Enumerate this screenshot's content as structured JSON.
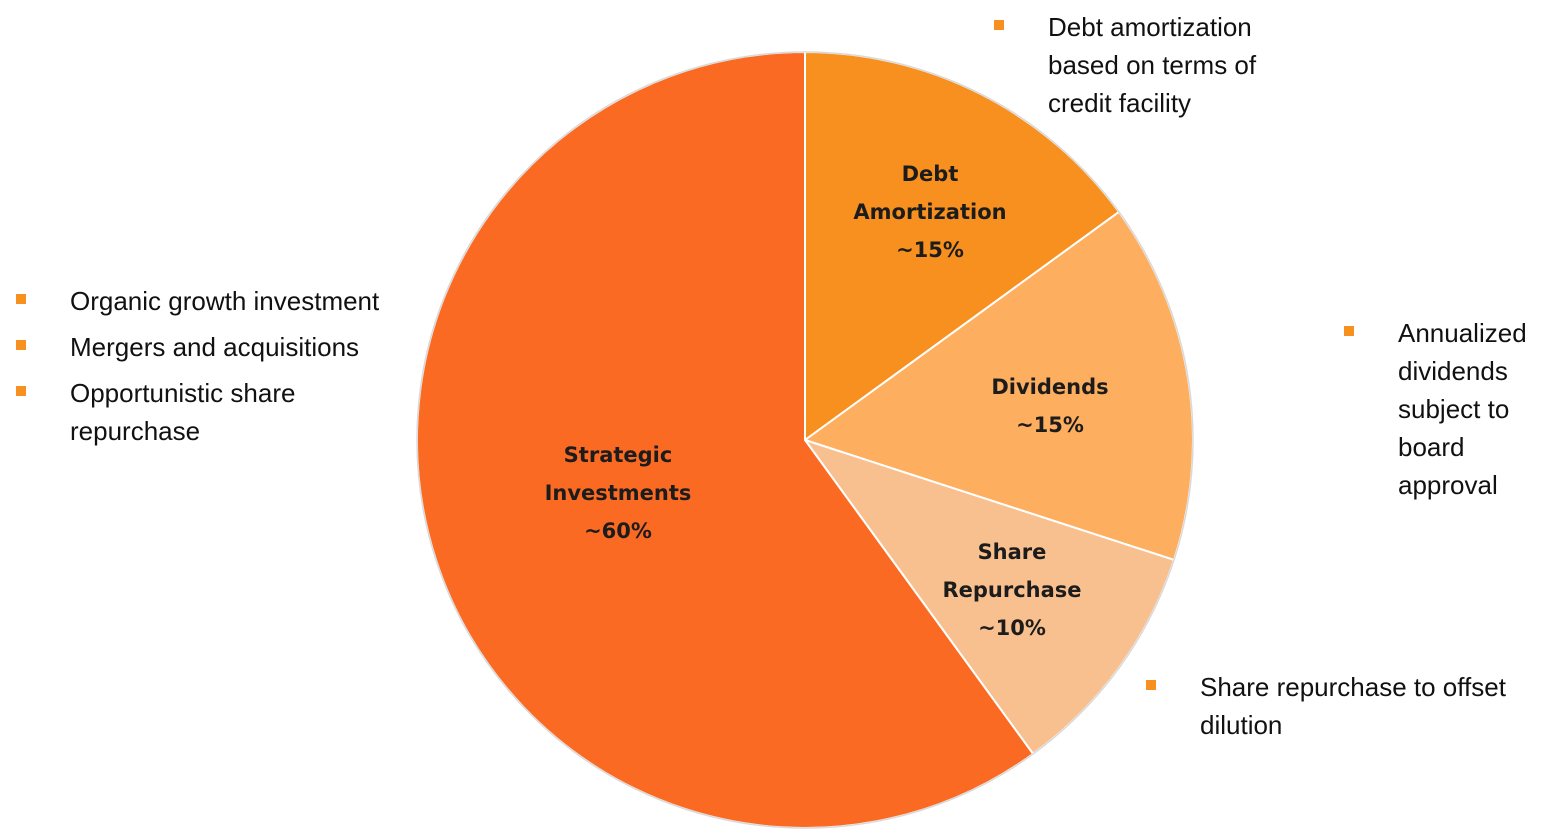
{
  "chart_data": {
    "type": "pie",
    "categories": [
      "Debt Amortization",
      "Dividends",
      "Share Repurchase",
      "Strategic Investments"
    ],
    "values": [
      15,
      15,
      10,
      60
    ],
    "value_labels": [
      "~15%",
      "~15%",
      "~10%",
      "~60%"
    ],
    "colors": [
      "#f7901e",
      "#fdae5f",
      "#f9c08f",
      "#fb6a22"
    ],
    "annotations": [
      {
        "items": [
          "Debt amortization based on terms of credit facility"
        ]
      },
      {
        "items": [
          "Annualized dividends subject to board approval"
        ]
      },
      {
        "items": [
          "Share repurchase to offset dilution"
        ]
      },
      {
        "items": [
          "Organic growth investment",
          "Mergers and acquisitions",
          "Opportunistic share repurchase"
        ]
      }
    ]
  }
}
